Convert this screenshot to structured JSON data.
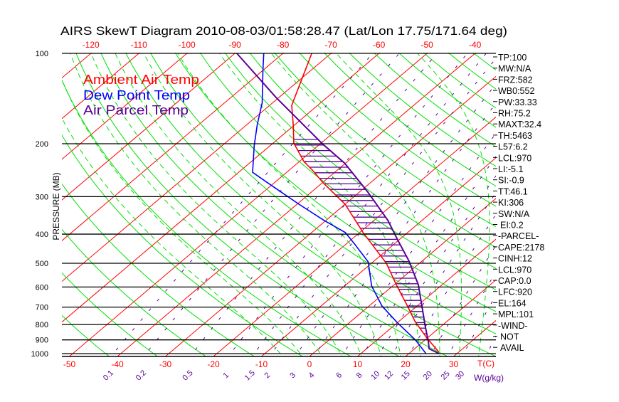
{
  "title": "AIRS SkewT Diagram 2010-08-03/01:58:28.47 (Lat/Lon 17.75/171.64 deg)",
  "legend": [
    {
      "label": "Ambient Air Temp",
      "color": "#ff0000"
    },
    {
      "label": "Dew Point Temp",
      "color": "#0000ff"
    },
    {
      "label": "Air Parcel Temp",
      "color": "#5a0096"
    }
  ],
  "stats": [
    "TP:100",
    "MW:N/A",
    "FRZ:582",
    "WB0:552",
    "PW:33.33",
    "RH:75.2",
    "MAXT:32.4",
    "TH:5463",
    "L57:6.2",
    "LCL:970",
    "LI:-5.1",
    "SI:-0.9",
    "TT:46.1",
    "KI:306",
    "SW:N/A",
    "EI:0.2",
    "-PARCEL-",
    "CAPE:2178",
    "CINH:12",
    "LCL:970",
    "CAP:0.0",
    "LFC:920",
    "EL:164",
    "MPL:101",
    "-WIND-",
    "NOT",
    "AVAIL"
  ],
  "chart_data": {
    "type": "line",
    "subtype": "skew-t log-p",
    "title": "AIRS SkewT Diagram 2010-08-03/01:58:28.47 (Lat/Lon 17.75/171.64 deg)",
    "ylabel": "PRESSURE (MB)",
    "xlabel": "T(C)",
    "mixing_ratio_label": "W(g/kg)",
    "ylim": [
      1020,
      100
    ],
    "pressure_ticks": [
      "100",
      "200",
      "300",
      "400",
      "500",
      "600",
      "700",
      "800",
      "900",
      "1000"
    ],
    "top_temp_ticks": [
      "-120",
      "-110",
      "-100",
      "-90",
      "-80",
      "-70",
      "-60",
      "-50",
      "-40"
    ],
    "bottom_temp_ticks": [
      "-50",
      "-40",
      "-30",
      "-20",
      "-10",
      "0",
      "10",
      "20",
      "30"
    ],
    "mixing_ratio_ticks": [
      "0.1",
      "0.2",
      "0.5",
      "1",
      "1.5",
      "2",
      "3",
      "4",
      "6",
      "8",
      "10",
      "12",
      "15",
      "20",
      "25",
      "30"
    ],
    "series": [
      {
        "name": "Ambient Air Temp",
        "color": "#ff0000",
        "p": [
          100,
          116,
          149,
          175,
          199,
          229,
          246,
          270,
          318,
          395,
          500,
          589,
          694,
          782,
          887,
          989
        ],
        "t": [
          -74.0,
          -70.8,
          -65.4,
          -59.9,
          -55.7,
          -49.1,
          -44.9,
          -39.8,
          -30.0,
          -19.3,
          -6.9,
          0.4,
          8.0,
          13.4,
          19.9,
          25.9
        ]
      },
      {
        "name": "Dew Point Temp",
        "color": "#0000ff",
        "p": [
          100,
          115,
          146,
          173,
          203,
          249,
          274,
          318,
          360,
          395,
          431,
          495,
          595,
          694,
          786,
          899,
          999
        ],
        "t": [
          -84.0,
          -79.7,
          -72.2,
          -67.8,
          -63.3,
          -57.1,
          -50.3,
          -39.6,
          -30.4,
          -23.0,
          -18.3,
          -11.0,
          -4.4,
          2.7,
          9.8,
          17.9,
          23.5
        ]
      },
      {
        "name": "Air Parcel Temp",
        "color": "#5a0096",
        "p": [
          100,
          140,
          200,
          232,
          290,
          360,
          417,
          492,
          589,
          694,
          809,
          912,
          963,
          1000
        ],
        "t": [
          -89.6,
          -70.7,
          -49.6,
          -40.2,
          -28.2,
          -17.1,
          -10.4,
          -2.7,
          5.0,
          11.0,
          16.6,
          21.1,
          23.0,
          26.3
        ]
      }
    ]
  }
}
